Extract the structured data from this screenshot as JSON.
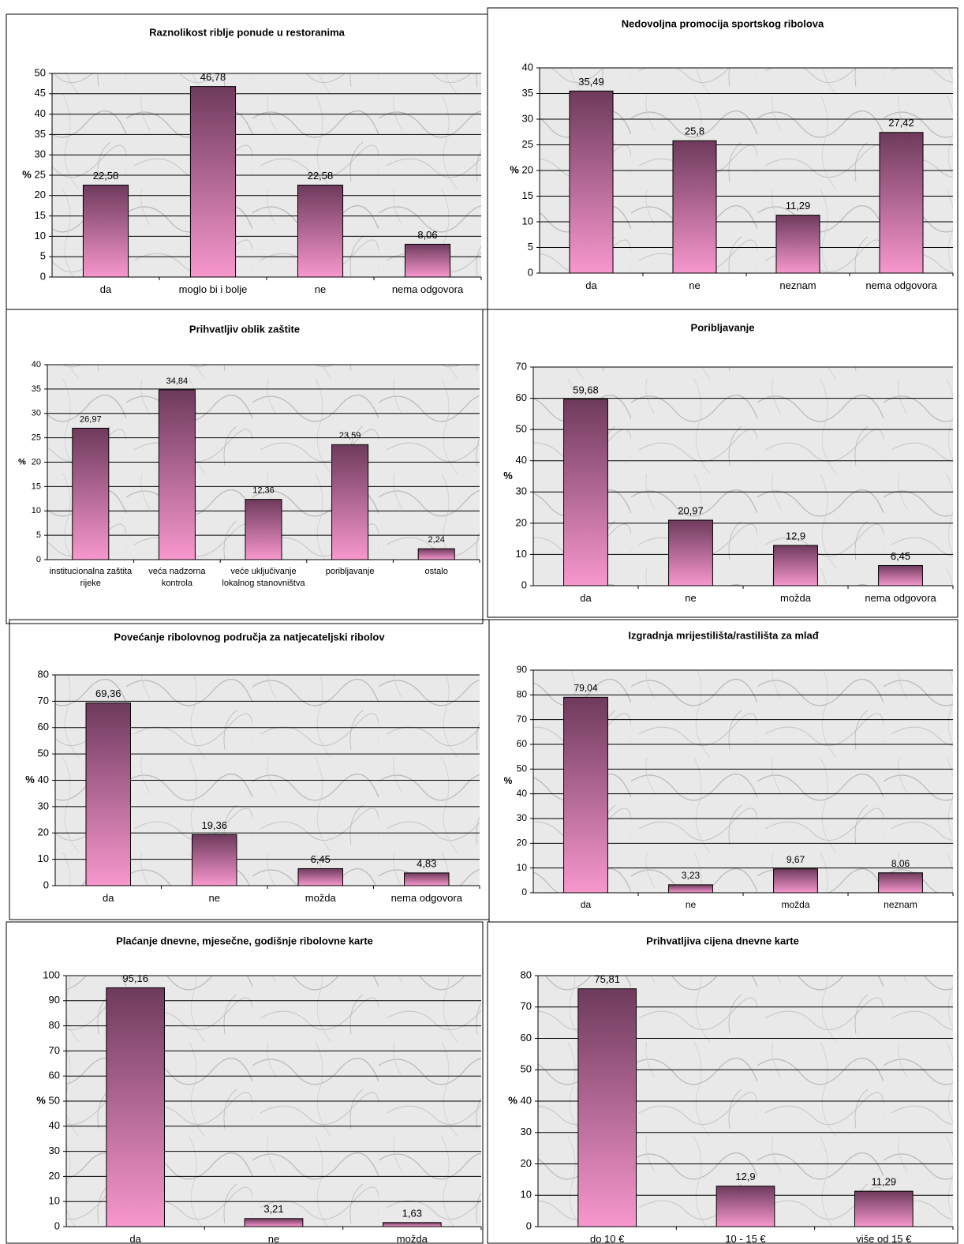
{
  "chart_data": [
    {
      "type": "bar",
      "title": "Raznolikost riblje ponude u restoranima",
      "y_label": "%",
      "categories": [
        "da",
        "moglo bi i bolje",
        "ne",
        "nema odgovora"
      ],
      "values": [
        22.58,
        46.78,
        22.58,
        8.06
      ],
      "value_labels": [
        "22,58",
        "46,78",
        "22,58",
        "8,06"
      ],
      "ylim": [
        0,
        50
      ],
      "yticks": [
        0,
        5,
        10,
        15,
        20,
        25,
        30,
        35,
        40,
        45,
        50
      ],
      "grid": true,
      "gradient": [
        "#6e3a5c",
        "#f797cd"
      ]
    },
    {
      "type": "bar",
      "title": "Nedovoljna promocija sportskog ribolova",
      "y_label": "%",
      "categories": [
        "da",
        "ne",
        "neznam",
        "nema odgovora"
      ],
      "values": [
        35.49,
        25.8,
        11.29,
        27.42
      ],
      "value_labels": [
        "35,49",
        "25,8",
        "11,29",
        "27,42"
      ],
      "ylim": [
        0,
        40
      ],
      "yticks": [
        0,
        5,
        10,
        15,
        20,
        25,
        30,
        35,
        40
      ],
      "grid": true,
      "gradient": [
        "#6e3a5c",
        "#f797cd"
      ]
    },
    {
      "type": "bar",
      "title": "Prihvatljiv oblik zaštite",
      "y_label": "%",
      "categories": [
        "institucionalna zaštita rijeke",
        "veća nadzorna kontrola",
        "veće uključivanje lokalnog stanovništva",
        "poribljavanje",
        "ostalo"
      ],
      "values": [
        26.97,
        34.84,
        12.36,
        23.59,
        2.24
      ],
      "value_labels": [
        "26,97",
        "34,84",
        "12,36",
        "23,59",
        "2,24"
      ],
      "ylim": [
        0,
        40
      ],
      "yticks": [
        0,
        5,
        10,
        15,
        20,
        25,
        30,
        35,
        40
      ],
      "grid": true,
      "gradient": [
        "#6e3a5c",
        "#f797cd"
      ]
    },
    {
      "type": "bar",
      "title": "Poribljavanje",
      "y_label": "%",
      "categories": [
        "da",
        "ne",
        "možda",
        "nema odgovora"
      ],
      "values": [
        59.68,
        20.97,
        12.9,
        6.45
      ],
      "value_labels": [
        "59,68",
        "20,97",
        "12,9",
        "6,45"
      ],
      "ylim": [
        0,
        70
      ],
      "yticks": [
        0,
        10,
        20,
        30,
        40,
        50,
        60,
        70
      ],
      "grid": true,
      "gradient": [
        "#6e3a5c",
        "#f797cd"
      ]
    },
    {
      "type": "bar",
      "title": "Povećanje ribolovnog područja za natjecateljski ribolov",
      "y_label": "%",
      "categories": [
        "da",
        "ne",
        "možda",
        "nema odgovora"
      ],
      "values": [
        69.36,
        19.36,
        6.45,
        4.83
      ],
      "value_labels": [
        "69,36",
        "19,36",
        "6,45",
        "4,83"
      ],
      "ylim": [
        0,
        80
      ],
      "yticks": [
        0,
        10,
        20,
        30,
        40,
        50,
        60,
        70,
        80
      ],
      "grid": true,
      "gradient": [
        "#6e3a5c",
        "#f797cd"
      ]
    },
    {
      "type": "bar",
      "title": "Izgradnja mrijestilišta/rastilišta za mlađ",
      "y_label": "%",
      "categories": [
        "da",
        "ne",
        "možda",
        "neznam"
      ],
      "values": [
        79.04,
        3.23,
        9.67,
        8.06
      ],
      "value_labels": [
        "79,04",
        "3,23",
        "9,67",
        "8,06"
      ],
      "ylim": [
        0,
        90
      ],
      "yticks": [
        0,
        10,
        20,
        30,
        40,
        50,
        60,
        70,
        80,
        90
      ],
      "grid": true,
      "gradient": [
        "#6e3a5c",
        "#f797cd"
      ]
    },
    {
      "type": "bar",
      "title": "Plaćanje dnevne, mjesečne, godišnje ribolovne karte",
      "y_label": "%",
      "categories": [
        "da",
        "ne",
        "možda"
      ],
      "values": [
        95.16,
        3.21,
        1.63
      ],
      "value_labels": [
        "95,16",
        "3,21",
        "1,63"
      ],
      "ylim": [
        0,
        100
      ],
      "yticks": [
        0,
        10,
        20,
        30,
        40,
        50,
        60,
        70,
        80,
        90,
        100
      ],
      "grid": true,
      "gradient": [
        "#6e3a5c",
        "#f797cd"
      ]
    },
    {
      "type": "bar",
      "title": "Prihvatljiva cijena dnevne karte",
      "y_label": "%",
      "categories": [
        "do 10 €",
        "10 - 15  €",
        "više od 15  €"
      ],
      "values": [
        75.81,
        12.9,
        11.29
      ],
      "value_labels": [
        "75,81",
        "12,9",
        "11,29"
      ],
      "ylim": [
        0,
        80
      ],
      "yticks": [
        0,
        10,
        20,
        30,
        40,
        50,
        60,
        70,
        80
      ],
      "grid": true,
      "gradient": [
        "#6e3a5c",
        "#f797cd"
      ]
    }
  ]
}
